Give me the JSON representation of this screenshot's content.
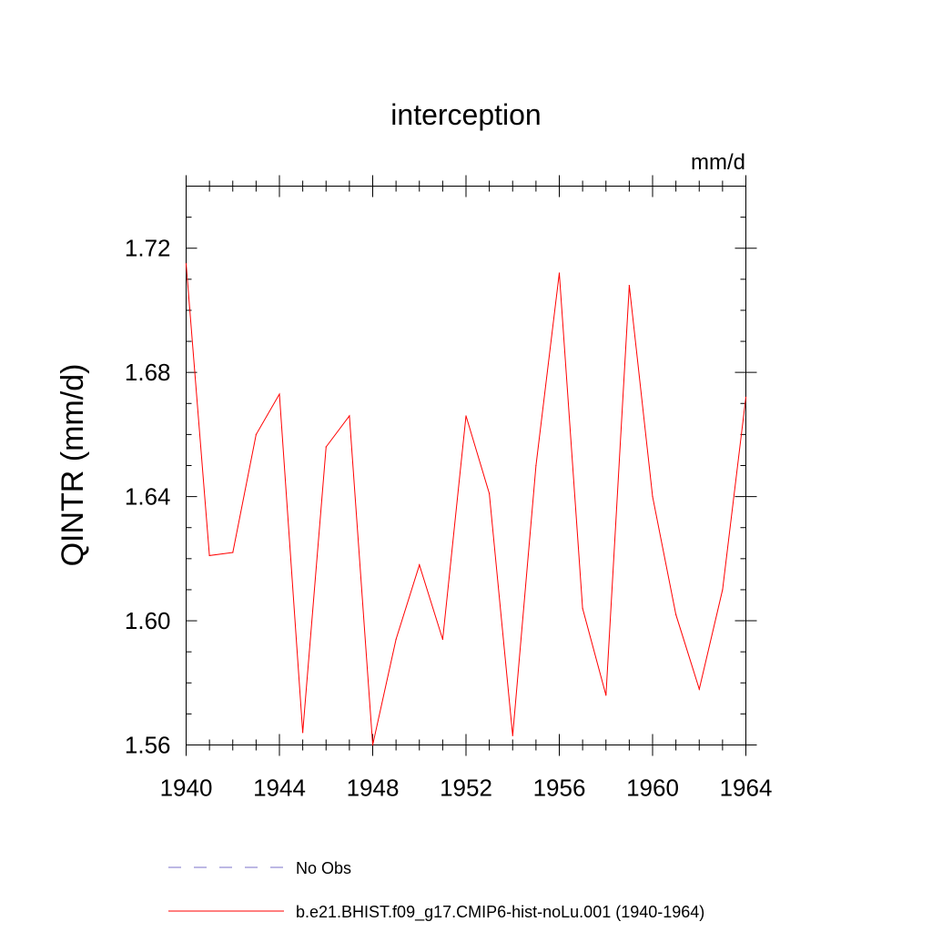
{
  "chart_data": {
    "type": "line",
    "title": "interception",
    "units_label": "mm/d",
    "ylabel": "QINTR  (mm/d)",
    "xlabel": "",
    "xlim": [
      1940,
      1964
    ],
    "ylim": [
      1.56,
      1.74
    ],
    "x_ticks": [
      1940,
      1944,
      1948,
      1952,
      1956,
      1960,
      1964
    ],
    "x_tick_labels": [
      "1940",
      "1944",
      "1948",
      "1952",
      "1956",
      "1960",
      "1964"
    ],
    "y_ticks": [
      1.56,
      1.6,
      1.64,
      1.68,
      1.72
    ],
    "y_tick_labels": [
      "1.56",
      "1.60",
      "1.64",
      "1.68",
      "1.72"
    ],
    "grid": false,
    "legend_position": "bottom",
    "series": [
      {
        "name": "b.e21.BHIST.f09_g17.CMIP6-hist-noLu.001 (1940-1964)",
        "color": "#ff0000",
        "style": "solid",
        "x": [
          1940,
          1941,
          1942,
          1943,
          1944,
          1945,
          1946,
          1947,
          1948,
          1949,
          1950,
          1951,
          1952,
          1953,
          1954,
          1955,
          1956,
          1957,
          1958,
          1959,
          1960,
          1961,
          1962,
          1963,
          1964
        ],
        "y": [
          1.715,
          1.621,
          1.622,
          1.66,
          1.673,
          1.564,
          1.656,
          1.666,
          1.56,
          1.594,
          1.618,
          1.594,
          1.666,
          1.641,
          1.563,
          1.65,
          1.712,
          1.604,
          1.576,
          1.708,
          1.64,
          1.602,
          1.578,
          1.61,
          1.672
        ]
      }
    ],
    "legend": [
      {
        "label": "No Obs",
        "color": "#7b72c8",
        "style": "dashed"
      },
      {
        "label": "b.e21.BHIST.f09_g17.CMIP6-hist-noLu.001 (1940-1964)",
        "color": "#ff0000",
        "style": "solid"
      }
    ]
  }
}
